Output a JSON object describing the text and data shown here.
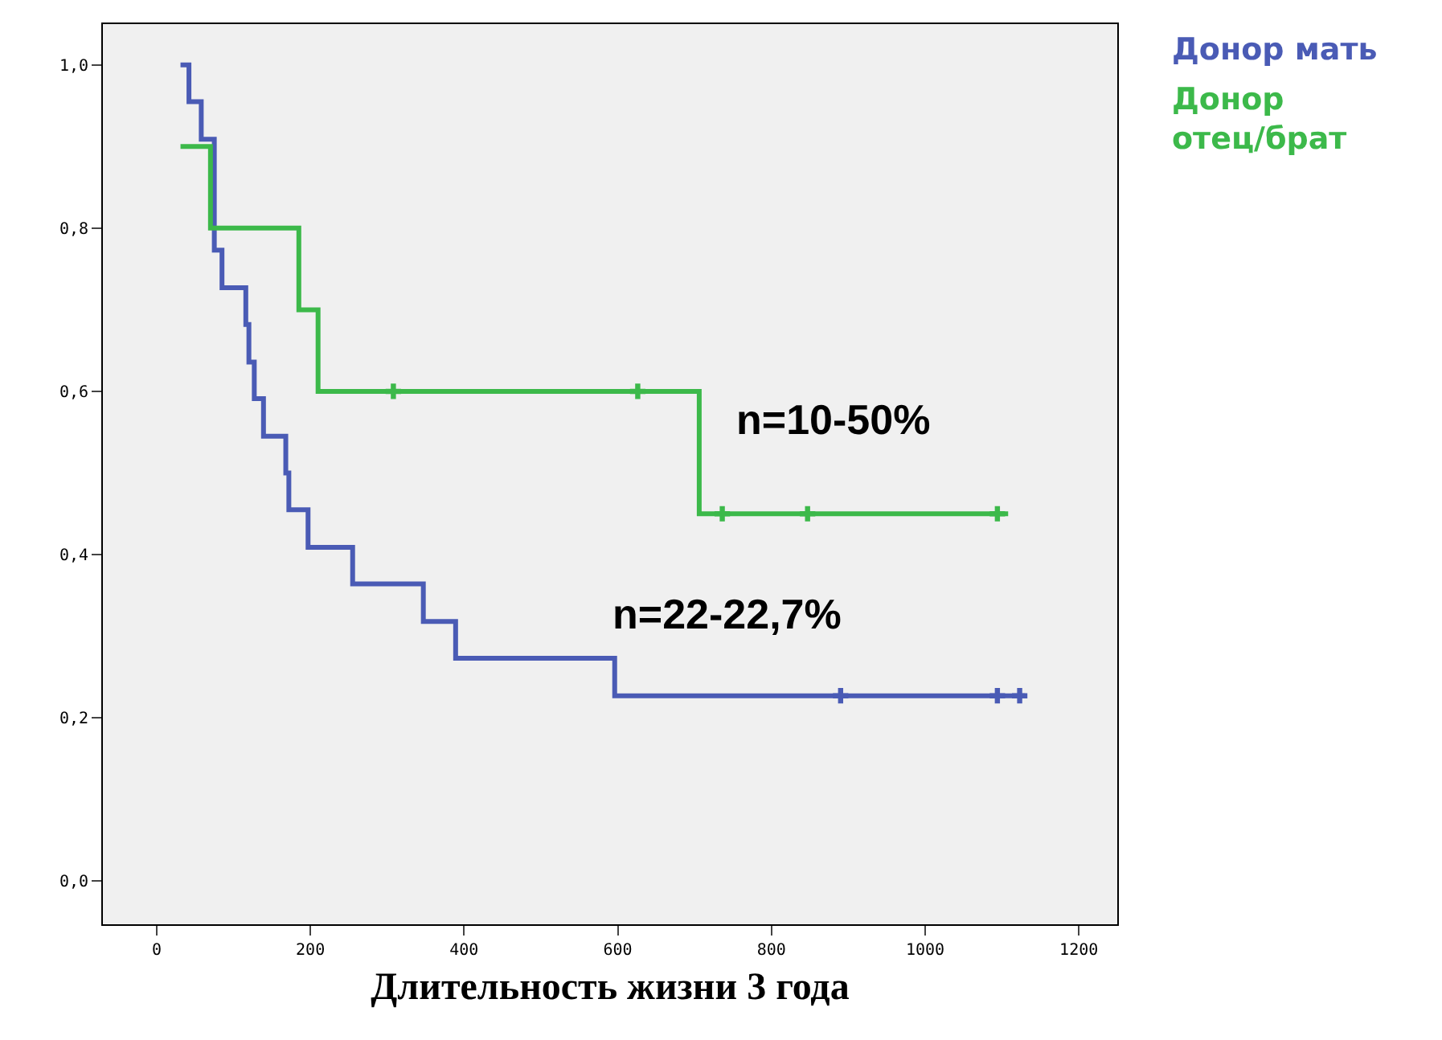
{
  "chart_data": {
    "type": "step",
    "xlabel": "Длительность жизни 3 года",
    "xlim": [
      -70,
      1250
    ],
    "ylim": [
      -0.053,
      1.05
    ],
    "xticks": [
      0,
      200,
      400,
      600,
      800,
      1000,
      1200
    ],
    "yticks": [
      {
        "value": 0,
        "label": "0,0"
      },
      {
        "value": 0.2,
        "label": "0,2"
      },
      {
        "value": 0.4,
        "label": "0,4"
      },
      {
        "value": 0.6,
        "label": "0,6"
      },
      {
        "value": 0.8,
        "label": "0,8"
      },
      {
        "value": 1.0,
        "label": "1,0"
      }
    ],
    "grid": false,
    "series": [
      {
        "name": "Донор мать",
        "color": "#4a5bb5",
        "x": [
          31,
          42,
          58,
          75,
          85,
          116,
          120,
          127,
          139,
          168,
          172,
          197,
          255,
          347,
          389,
          596,
          1130
        ],
        "values": [
          1.0,
          0.955,
          0.909,
          0.773,
          0.727,
          0.682,
          0.636,
          0.591,
          0.545,
          0.5,
          0.455,
          0.409,
          0.364,
          0.318,
          0.273,
          0.227,
          0.227
        ]
      },
      {
        "name": "Донор отец/брат",
        "color": "#3cb94a",
        "x": [
          31,
          70,
          185,
          210,
          706,
          1108
        ],
        "values": [
          0.9,
          0.8,
          0.7,
          0.6,
          0.45,
          0.45
        ]
      },
      {
        "type": "scatter",
        "marker": "cross",
        "color": "#4a5bb5",
        "x": [
          890,
          1094,
          1123
        ],
        "values": [
          0.227,
          0.227,
          0.227
        ]
      },
      {
        "type": "scatter",
        "marker": "cross",
        "color": "#3cb94a",
        "x": [
          308,
          626,
          736,
          847,
          1094
        ],
        "values": [
          0.6,
          0.6,
          0.45,
          0.45,
          0.45
        ]
      }
    ],
    "annotations": [
      "n=10-50%",
      "n=22-22,7%"
    ]
  }
}
